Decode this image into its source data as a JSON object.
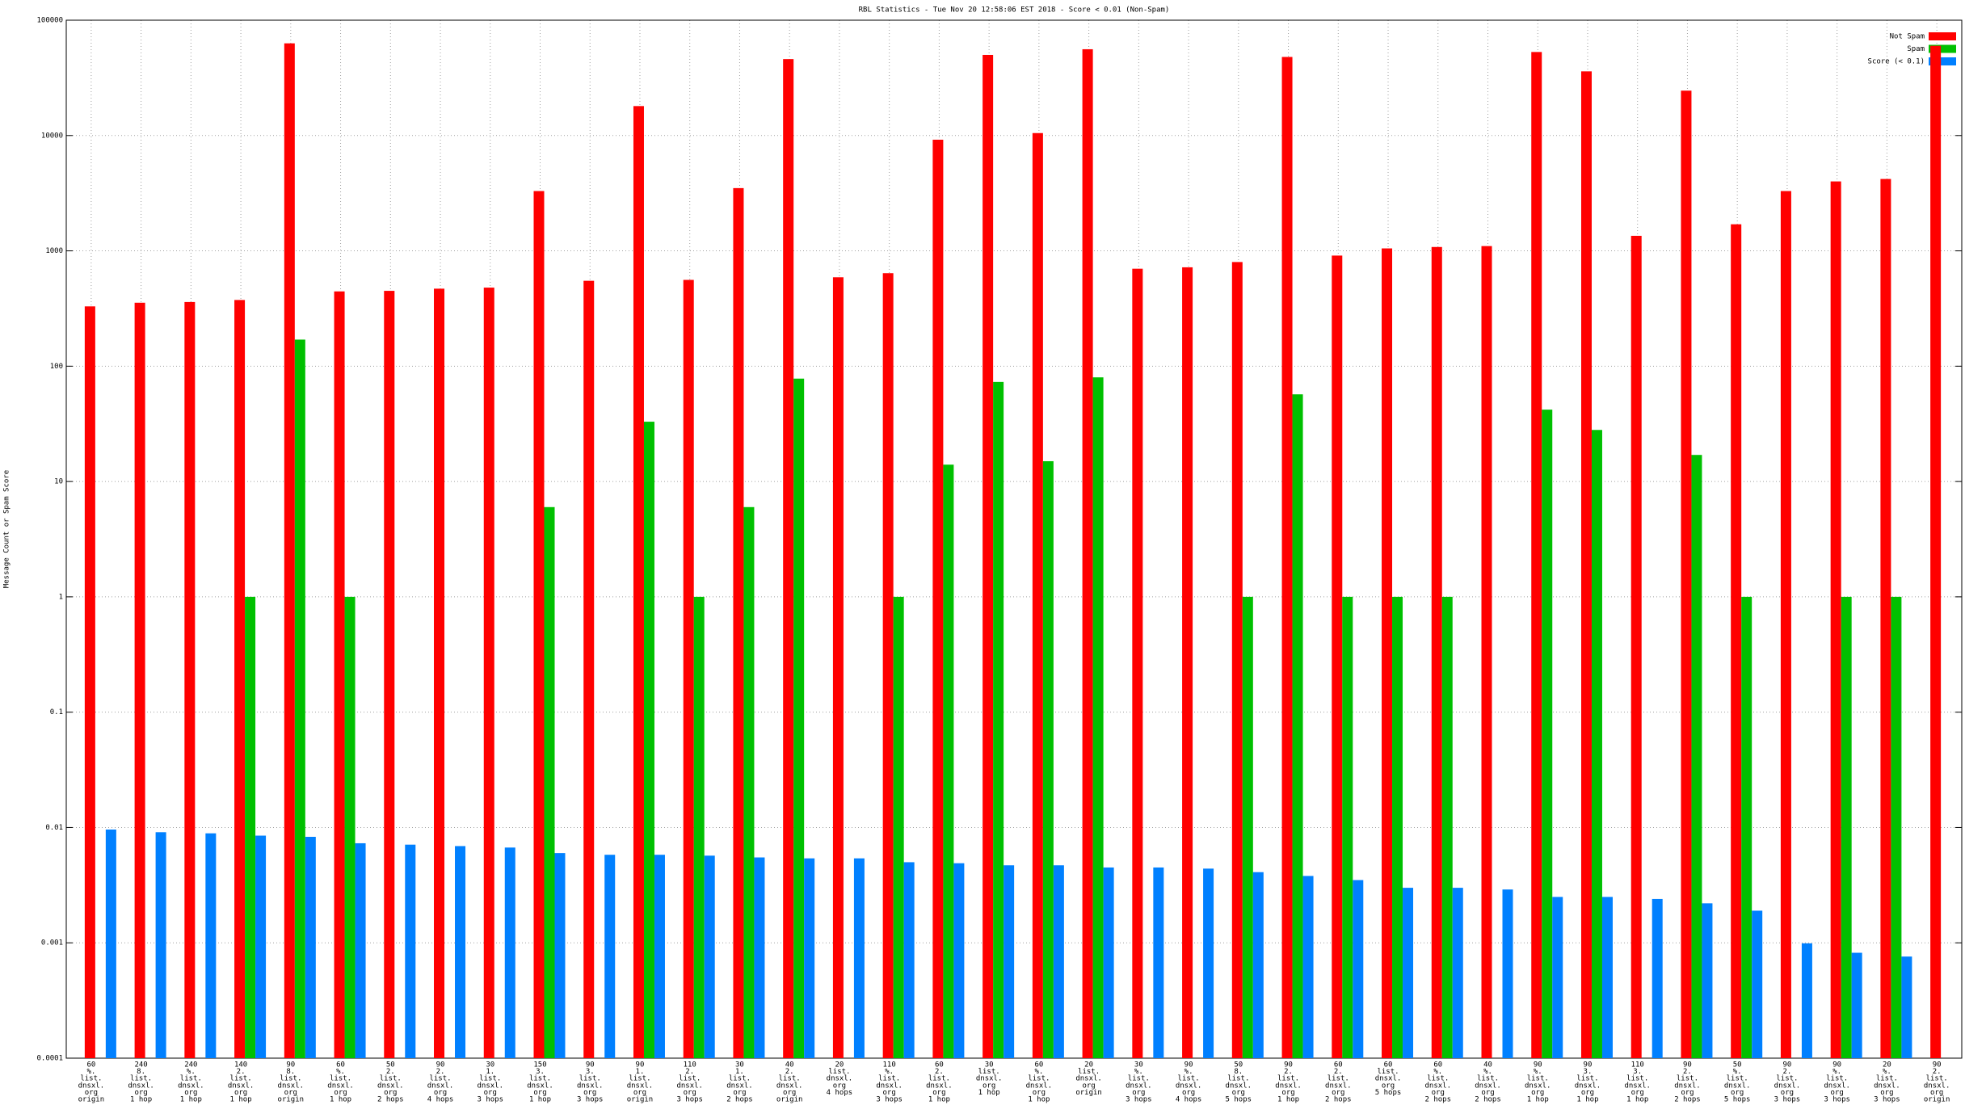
{
  "chart_data": {
    "type": "bar",
    "title": "RBL Statistics - Tue Nov 20 12:58:06 EST 2018 - Score < 0.01 (Non-Spam)",
    "ylabel": "Message Count or Spam Score",
    "log_y": true,
    "grid": true,
    "legend": "top-right",
    "ylim": [
      0.0001,
      100000
    ],
    "yticks": [
      0.0001,
      0.001,
      0.01,
      0.1,
      1,
      10,
      100,
      1000,
      10000,
      100000
    ],
    "categories": [
      [
        "60",
        "%.",
        "list.",
        "dnsxl.",
        "org",
        "origin"
      ],
      [
        "240",
        "8.",
        "list.",
        "dnsxl.",
        "org",
        "1 hop"
      ],
      [
        "240",
        "%.",
        "list.",
        "dnsxl.",
        "org",
        "1 hop"
      ],
      [
        "140",
        "2.",
        "list.",
        "dnsxl.",
        "org",
        "1 hop"
      ],
      [
        "90",
        "8.",
        "list.",
        "dnsxl.",
        "org",
        "origin"
      ],
      [
        "60",
        "%.",
        "list.",
        "dnsxl.",
        "org",
        "1 hop"
      ],
      [
        "50",
        "2.",
        "list.",
        "dnsxl.",
        "org",
        "2 hops"
      ],
      [
        "90",
        "2.",
        "list.",
        "dnsxl.",
        "org",
        "4 hops"
      ],
      [
        "30",
        "1.",
        "list.",
        "dnsxl.",
        "org",
        "3 hops"
      ],
      [
        "150",
        "3.",
        "list.",
        "dnsxl.",
        "org",
        "1 hop"
      ],
      [
        "90",
        "3.",
        "list.",
        "dnsxl.",
        "org",
        "3 hops"
      ],
      [
        "90",
        "1.",
        "list.",
        "dnsxl.",
        "org",
        "origin"
      ],
      [
        "110",
        "2.",
        "list.",
        "dnsxl.",
        "org",
        "3 hops"
      ],
      [
        "30",
        "1.",
        "list.",
        "dnsxl.",
        "org",
        "2 hops"
      ],
      [
        "40",
        "2.",
        "list.",
        "dnsxl.",
        "org",
        "origin"
      ],
      [
        "20",
        "list.",
        "dnsxl.",
        "org",
        "4 hops"
      ],
      [
        "110",
        "%.",
        "list.",
        "dnsxl.",
        "org",
        "3 hops"
      ],
      [
        "60",
        "2.",
        "list.",
        "dnsxl.",
        "org",
        "1 hop"
      ],
      [
        "30",
        "list.",
        "dnsxl.",
        "org",
        "1 hop"
      ],
      [
        "60",
        "%.",
        "list.",
        "dnsxl.",
        "org",
        "1 hop"
      ],
      [
        "20",
        "list.",
        "dnsxl.",
        "org",
        "origin"
      ],
      [
        "30",
        "%.",
        "list.",
        "dnsxl.",
        "org",
        "3 hops"
      ],
      [
        "90",
        "%.",
        "list.",
        "dnsxl.",
        "org",
        "4 hops"
      ],
      [
        "50",
        "8.",
        "list.",
        "dnsxl.",
        "org",
        "5 hops"
      ],
      [
        "90",
        "2.",
        "list.",
        "dnsxl.",
        "org",
        "1 hop"
      ],
      [
        "60",
        "2.",
        "list.",
        "dnsxl.",
        "org",
        "2 hops"
      ],
      [
        "60",
        "list.",
        "dnsxl.",
        "org",
        "5 hops"
      ],
      [
        "60",
        "%.",
        "list.",
        "dnsxl.",
        "org",
        "2 hops"
      ],
      [
        "40",
        "%.",
        "list.",
        "dnsxl.",
        "org",
        "2 hops"
      ],
      [
        "90",
        "%.",
        "list.",
        "dnsxl.",
        "org",
        "1 hop"
      ],
      [
        "90",
        "3.",
        "list.",
        "dnsxl.",
        "org",
        "1 hop"
      ],
      [
        "110",
        "3.",
        "list.",
        "dnsxl.",
        "org",
        "1 hop"
      ],
      [
        "90",
        "2.",
        "list.",
        "dnsxl.",
        "org",
        "2 hops"
      ],
      [
        "50",
        "%.",
        "list.",
        "dnsxl.",
        "org",
        "5 hops"
      ],
      [
        "90",
        "2.",
        "list.",
        "dnsxl.",
        "org",
        "3 hops"
      ],
      [
        "90",
        "%.",
        "list.",
        "dnsxl.",
        "org",
        "3 hops"
      ],
      [
        "20",
        "%.",
        "list.",
        "dnsxl.",
        "org",
        "3 hops"
      ],
      [
        "90",
        "2.",
        "list.",
        "dnsxl.",
        "org",
        "origin"
      ]
    ],
    "series": [
      {
        "name": "Not Spam",
        "color": "#ff0000",
        "values": [
          330,
          355,
          360,
          375,
          63000,
          445,
          450,
          470,
          480,
          3300,
          550,
          18000,
          560,
          3500,
          46000,
          590,
          640,
          9200,
          50000,
          10500,
          56000,
          700,
          720,
          800,
          48000,
          910,
          1050,
          1080,
          1100,
          53000,
          36000,
          1350,
          24500,
          1700,
          3300,
          4000,
          4200,
          60000
        ]
      },
      {
        "name": "Spam",
        "color": "#00c000",
        "values": [
          null,
          null,
          null,
          1,
          170,
          1,
          null,
          null,
          null,
          6,
          null,
          33,
          1,
          6,
          78,
          null,
          1,
          14,
          73,
          15,
          80,
          null,
          null,
          1,
          57,
          1,
          1,
          1,
          null,
          42,
          28,
          null,
          17,
          1,
          null,
          1,
          1,
          null
        ]
      },
      {
        "name": "Score (< 0.1)",
        "color": "#0080ff",
        "values": [
          0.0096,
          0.0091,
          0.0089,
          0.0085,
          0.0083,
          0.0073,
          0.0071,
          0.0069,
          0.0067,
          0.006,
          0.0058,
          0.0058,
          0.0057,
          0.0055,
          0.0054,
          0.0054,
          0.005,
          0.0049,
          0.0047,
          0.0047,
          0.0045,
          0.0045,
          0.0044,
          0.0041,
          0.0038,
          0.0035,
          0.003,
          0.003,
          0.0029,
          0.0025,
          0.0025,
          0.0024,
          0.0022,
          0.0019,
          0.00099,
          0.00082,
          0.00076,
          null
        ]
      }
    ]
  }
}
